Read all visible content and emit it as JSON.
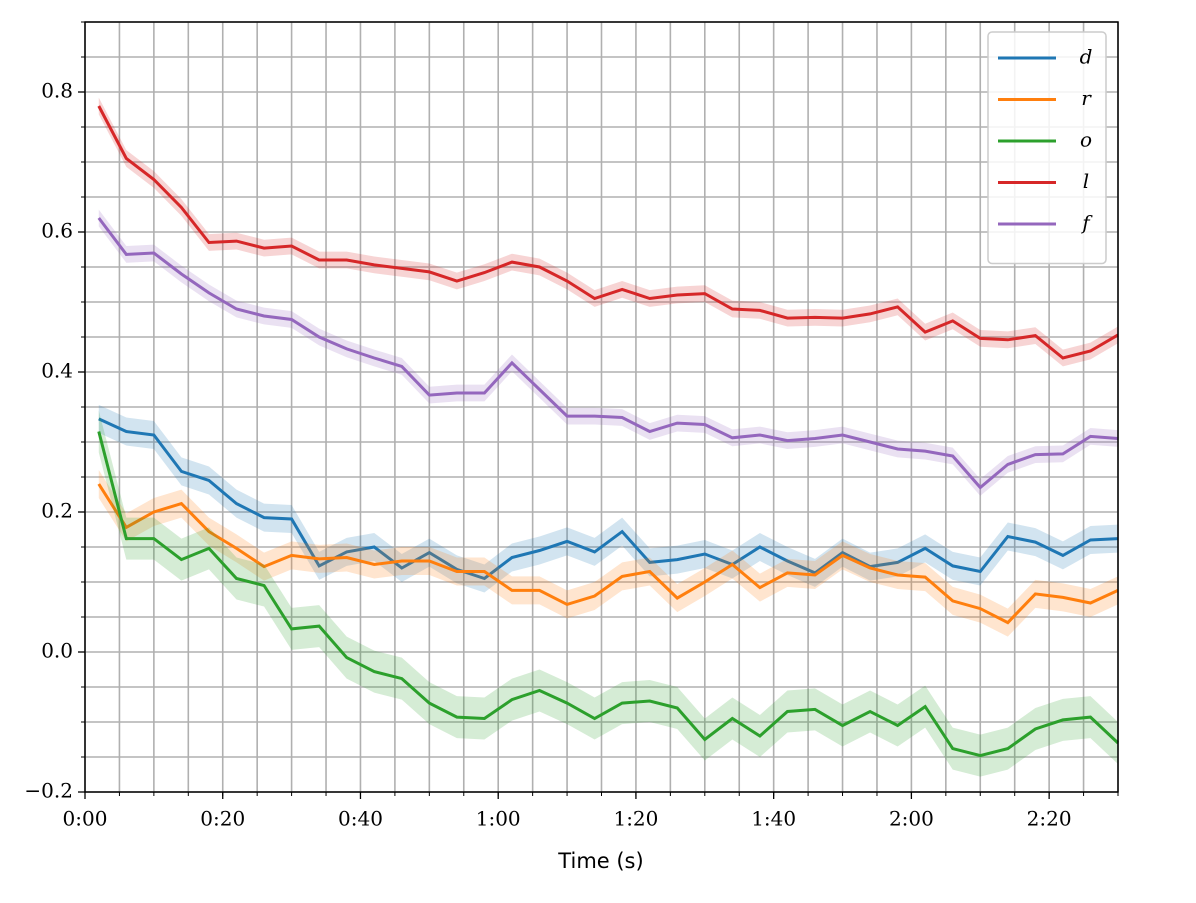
{
  "chart_data": {
    "type": "line",
    "xlabel": "Time (s)",
    "x": [
      2,
      6,
      10,
      14,
      18,
      22,
      26,
      30,
      34,
      38,
      42,
      46,
      50,
      54,
      58,
      62,
      66,
      70,
      74,
      78,
      82,
      86,
      90,
      94,
      98,
      102,
      106,
      110,
      114,
      118,
      122,
      126,
      130,
      134,
      138,
      142,
      146,
      150
    ],
    "xlim": [
      0,
      150
    ],
    "xticks": [
      {
        "value": 0,
        "label": "0:00"
      },
      {
        "value": 20,
        "label": "0:20"
      },
      {
        "value": 40,
        "label": "0:40"
      },
      {
        "value": 60,
        "label": "1:00"
      },
      {
        "value": 80,
        "label": "1:20"
      },
      {
        "value": 100,
        "label": "1:40"
      },
      {
        "value": 120,
        "label": "2:00"
      },
      {
        "value": 140,
        "label": "2:20"
      }
    ],
    "minor_xticks": [
      0,
      5,
      10,
      15,
      20,
      25,
      30,
      35,
      40,
      45,
      50,
      55,
      60,
      65,
      70,
      75,
      80,
      85,
      90,
      95,
      100,
      105,
      110,
      115,
      120,
      125,
      130,
      135,
      140,
      145,
      150
    ],
    "ylim": [
      -0.2,
      0.9
    ],
    "yticks": [
      {
        "value": -0.2,
        "label": "−0.2"
      },
      {
        "value": 0,
        "label": "0.0"
      },
      0.2,
      0.4,
      0.6,
      0.8
    ],
    "minor_yticks": [
      -0.2,
      -0.15,
      -0.1,
      -0.05,
      0,
      0.05,
      0.1,
      0.15,
      0.2,
      0.25,
      0.3,
      0.35,
      0.4,
      0.45,
      0.5,
      0.55,
      0.6,
      0.65,
      0.7,
      0.75,
      0.8,
      0.85,
      0.9
    ],
    "grid": true,
    "legend": "upper right",
    "series": [
      {
        "name": "d",
        "color": "#1f77b4",
        "error": 0.02,
        "values": [
          0.333,
          0.315,
          0.31,
          0.258,
          0.245,
          0.212,
          0.192,
          0.19,
          0.123,
          0.143,
          0.15,
          0.12,
          0.142,
          0.118,
          0.105,
          0.135,
          0.145,
          0.158,
          0.143,
          0.172,
          0.128,
          0.132,
          0.14,
          0.125,
          0.15,
          0.13,
          0.113,
          0.142,
          0.122,
          0.128,
          0.148,
          0.123,
          0.115,
          0.165,
          0.157,
          0.138,
          0.16,
          0.162
        ]
      },
      {
        "name": "r",
        "color": "#ff7f0e",
        "error": 0.02,
        "values": [
          0.24,
          0.178,
          0.2,
          0.212,
          0.172,
          0.148,
          0.122,
          0.138,
          0.133,
          0.135,
          0.125,
          0.13,
          0.13,
          0.115,
          0.115,
          0.088,
          0.088,
          0.068,
          0.08,
          0.108,
          0.115,
          0.077,
          0.1,
          0.125,
          0.092,
          0.113,
          0.11,
          0.138,
          0.12,
          0.11,
          0.107,
          0.073,
          0.062,
          0.042,
          0.083,
          0.078,
          0.07,
          0.088
        ]
      },
      {
        "name": "o",
        "color": "#2ca02c",
        "error": 0.03,
        "values": [
          0.315,
          0.162,
          0.162,
          0.132,
          0.148,
          0.105,
          0.095,
          0.033,
          0.037,
          -0.008,
          -0.028,
          -0.038,
          -0.073,
          -0.093,
          -0.095,
          -0.068,
          -0.055,
          -0.073,
          -0.095,
          -0.073,
          -0.07,
          -0.08,
          -0.125,
          -0.095,
          -0.12,
          -0.085,
          -0.082,
          -0.105,
          -0.085,
          -0.105,
          -0.078,
          -0.138,
          -0.148,
          -0.138,
          -0.11,
          -0.097,
          -0.093,
          -0.13
        ]
      },
      {
        "name": "l",
        "color": "#d62728",
        "error": 0.012,
        "values": [
          0.78,
          0.705,
          0.675,
          0.635,
          0.585,
          0.587,
          0.577,
          0.58,
          0.56,
          0.56,
          0.553,
          0.548,
          0.543,
          0.53,
          0.542,
          0.557,
          0.55,
          0.53,
          0.505,
          0.518,
          0.505,
          0.51,
          0.512,
          0.49,
          0.488,
          0.477,
          0.478,
          0.477,
          0.483,
          0.493,
          0.457,
          0.473,
          0.448,
          0.446,
          0.452,
          0.42,
          0.43,
          0.453
        ]
      },
      {
        "name": "f",
        "color": "#9467bd",
        "error": 0.012,
        "values": [
          0.62,
          0.568,
          0.57,
          0.54,
          0.513,
          0.49,
          0.48,
          0.475,
          0.45,
          0.433,
          0.42,
          0.408,
          0.367,
          0.37,
          0.37,
          0.413,
          0.375,
          0.337,
          0.337,
          0.335,
          0.315,
          0.327,
          0.325,
          0.306,
          0.31,
          0.302,
          0.305,
          0.31,
          0.3,
          0.29,
          0.287,
          0.28,
          0.235,
          0.268,
          0.282,
          0.283,
          0.308,
          0.305
        ]
      }
    ]
  }
}
